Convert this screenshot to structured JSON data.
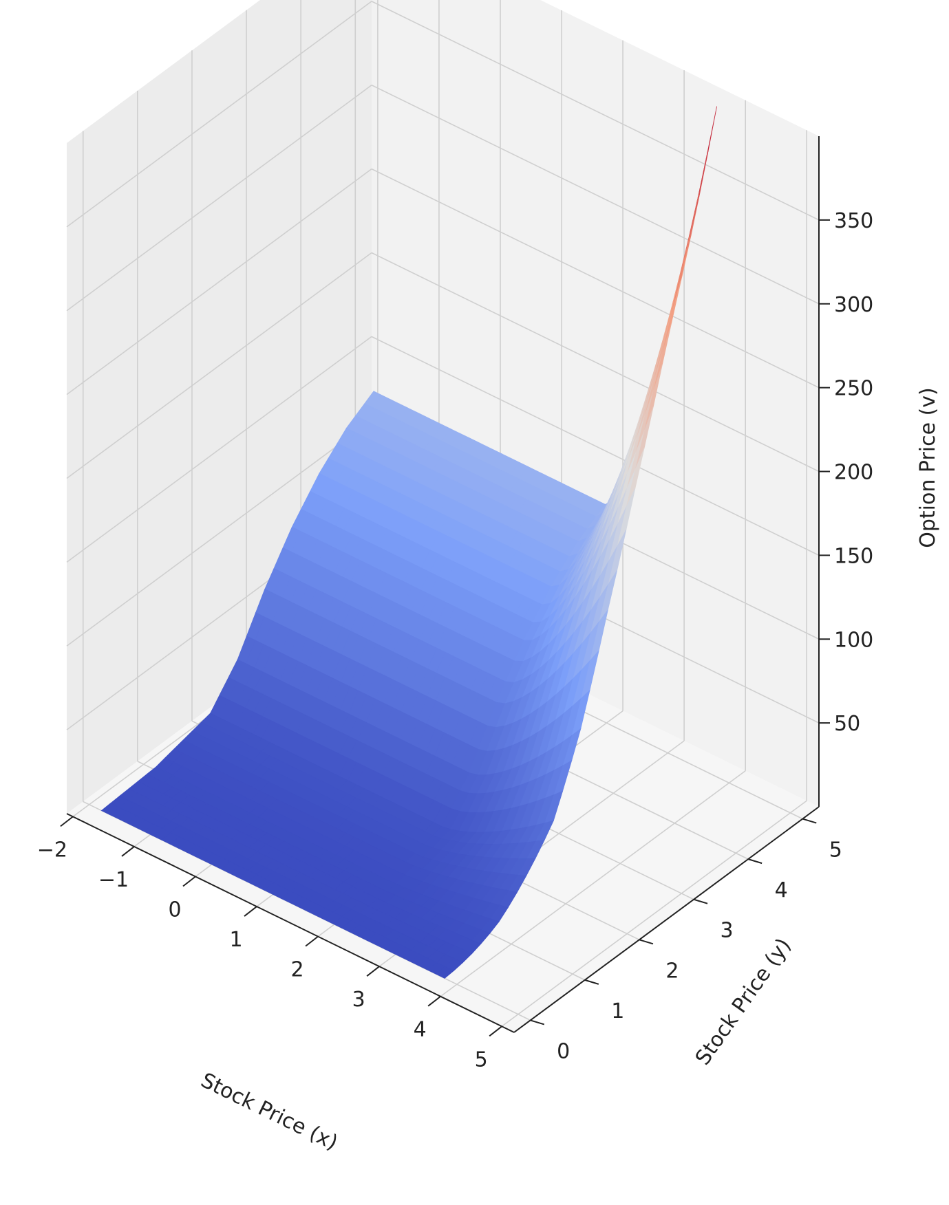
{
  "chart_data": {
    "type": "surface",
    "colormap": "coolwarm",
    "xlabel": "Stock Price (x)",
    "ylabel": "Stock Price (y)",
    "zlabel": "Option Price (v)",
    "x_ticks": [
      "−2",
      "−1",
      "0",
      "1",
      "2",
      "3",
      "4",
      "5"
    ],
    "y_ticks": [
      "0",
      "1",
      "2",
      "3",
      "4",
      "5"
    ],
    "z_ticks": [
      "50",
      "100",
      "150",
      "200",
      "250",
      "300",
      "350"
    ],
    "xlim": [
      -2.1,
      5.2
    ],
    "ylim": [
      -0.3,
      5.3
    ],
    "zlim": [
      0,
      400
    ],
    "x_range": [
      -1.8,
      3.8
    ],
    "y_range": [
      0.0,
      5.0
    ],
    "grid": true,
    "surface_profile": [
      {
        "y": 0.0,
        "v_flat": 0
      },
      {
        "y": 1.0,
        "v_flat": 2
      },
      {
        "y": 2.0,
        "v_flat": 10
      },
      {
        "y": 2.5,
        "v_flat": 30
      },
      {
        "y": 3.0,
        "v_flat": 60
      },
      {
        "y": 3.5,
        "v_flat": 85
      },
      {
        "y": 4.0,
        "v_flat": 105
      },
      {
        "y": 4.5,
        "v_flat": 120
      },
      {
        "y": 5.0,
        "v_flat": 130
      }
    ],
    "corner_values": {
      "x_max_y_min": 0,
      "x_max_y_max": 400,
      "x_min_y_max": 130
    }
  }
}
